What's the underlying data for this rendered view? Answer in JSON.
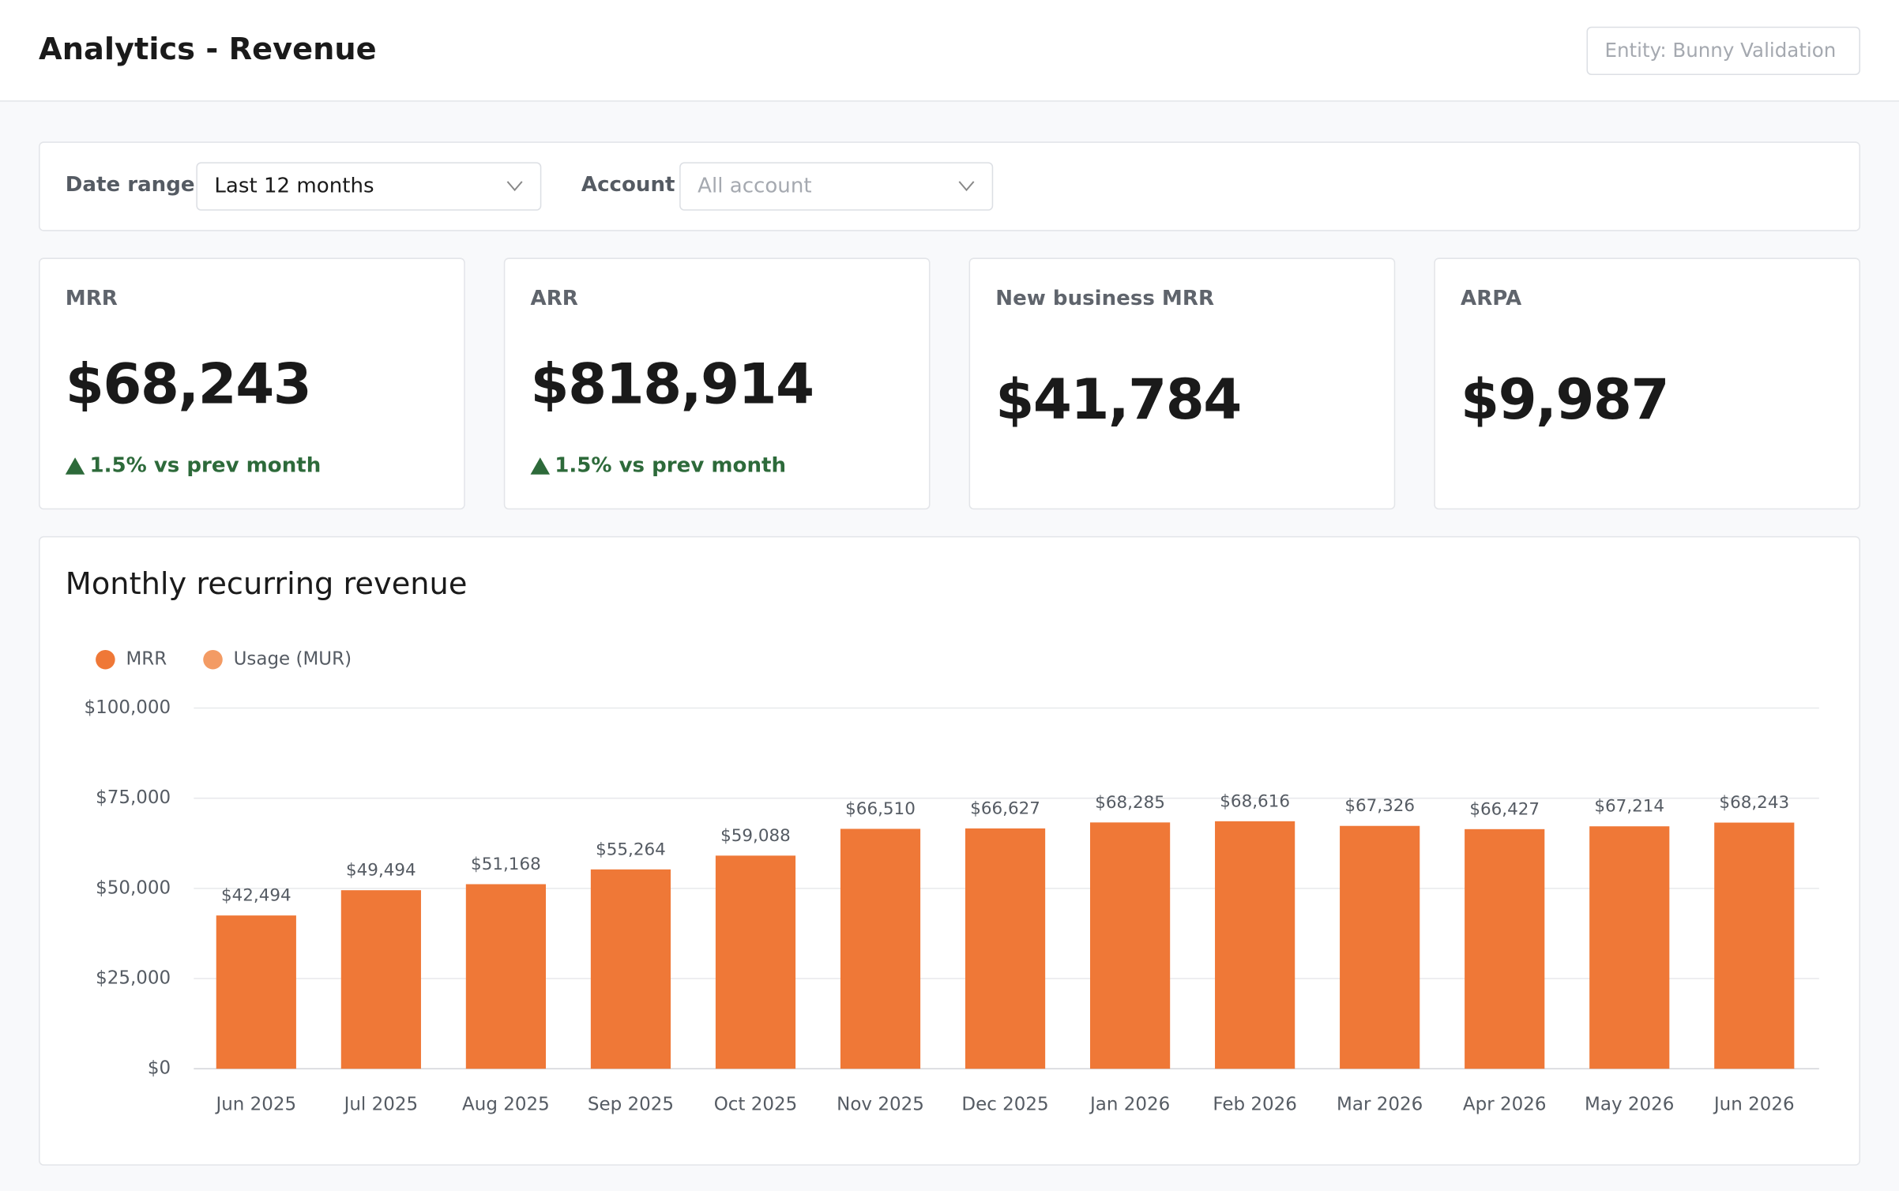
{
  "header": {
    "title": "Analytics - Revenue",
    "entity": "Entity: Bunny Validation"
  },
  "filters": {
    "date_label": "Date range",
    "date_value": "Last 12 months",
    "account_label": "Account",
    "account_placeholder": "All account"
  },
  "kpis": [
    {
      "label": "MRR",
      "value": "$68,243",
      "change": "1.5% vs prev month"
    },
    {
      "label": "ARR",
      "value": "$818,914",
      "change": "1.5% vs prev month"
    },
    {
      "label": "New business MRR",
      "value": "$41,784"
    },
    {
      "label": "ARPA",
      "value": "$9,987"
    }
  ],
  "chart_data": {
    "type": "bar",
    "title": "Monthly recurring revenue",
    "stacked": true,
    "categories": [
      "Jun 2025",
      "Jul 2025",
      "Aug 2025",
      "Sep 2025",
      "Oct 2025",
      "Nov 2025",
      "Dec 2025",
      "Jan 2026",
      "Feb 2026",
      "Mar 2026",
      "Apr 2026",
      "May 2026",
      "Jun 2026"
    ],
    "series": [
      {
        "name": "MRR",
        "color": "#ef7837",
        "values": [
          42494,
          49494,
          51168,
          55264,
          59088,
          66510,
          66627,
          68285,
          68616,
          67326,
          66427,
          67214,
          68243
        ],
        "value_labels": [
          "$42,494",
          "$49,494",
          "$51,168",
          "$55,264",
          "$59,088",
          "$66,510",
          "$66,627",
          "$68,285",
          "$68,616",
          "$67,326",
          "$66,427",
          "$67,214",
          "$68,243"
        ]
      },
      {
        "name": "Usage (MUR)",
        "color": "#f39b64",
        "values": [
          0,
          0,
          0,
          0,
          0,
          0,
          0,
          0,
          0,
          0,
          0,
          0,
          0
        ]
      }
    ],
    "ylim": [
      0,
      100000
    ],
    "yticks": [
      {
        "value": 0,
        "label": "$0"
      },
      {
        "value": 25000,
        "label": "$25,000"
      },
      {
        "value": 50000,
        "label": "$50,000"
      },
      {
        "value": 75000,
        "label": "$75,000"
      },
      {
        "value": 100000,
        "label": "$100,000"
      }
    ],
    "grid": true,
    "legend": "top-left"
  }
}
